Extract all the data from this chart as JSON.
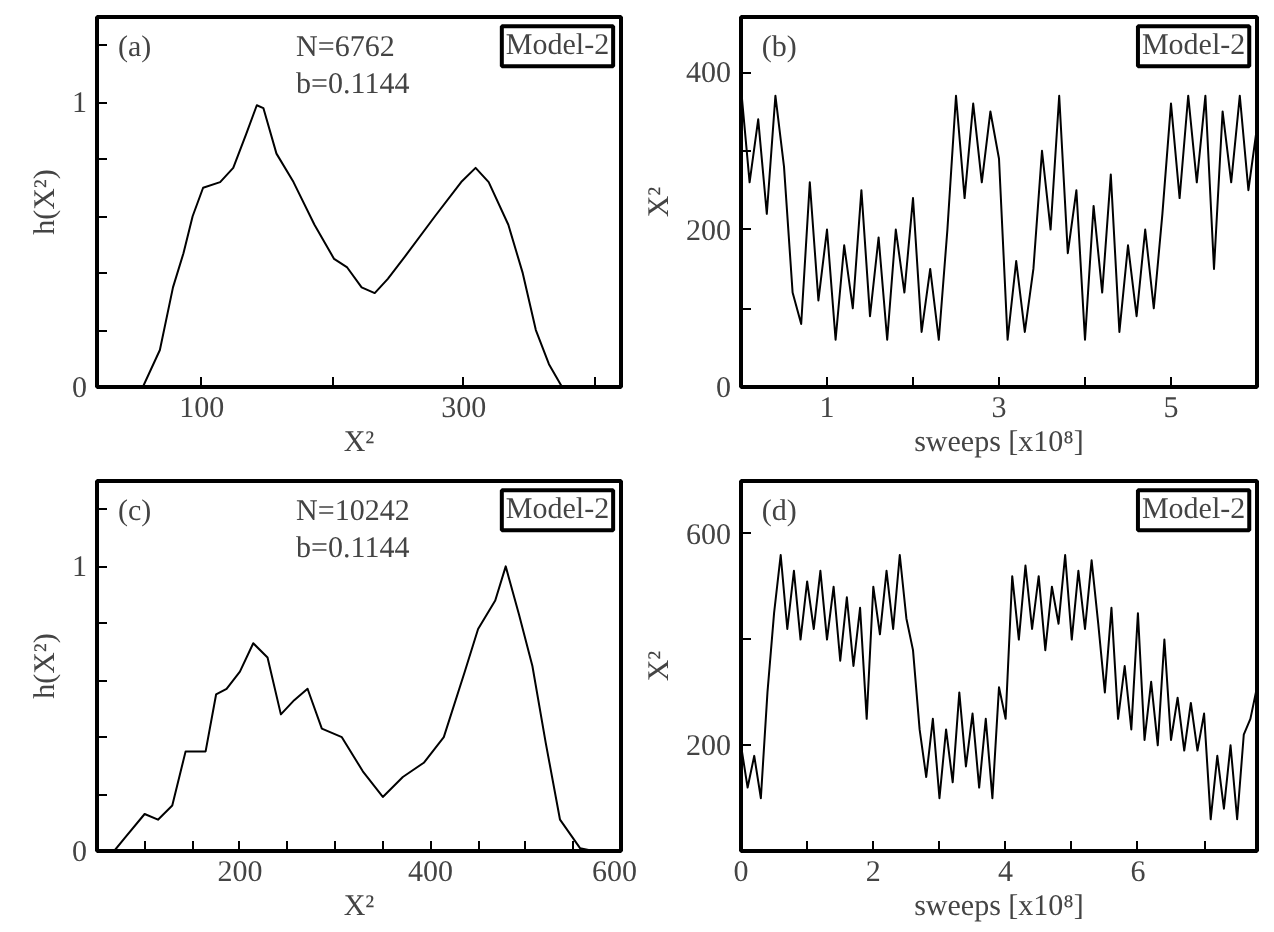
{
  "chart_data": [
    {
      "type": "line",
      "xlabel": "X²",
      "ylabel": "h(X²)",
      "annotations": [
        "(a)",
        "N=6762",
        "b=0.1144",
        "Model-2"
      ],
      "xlim": [
        20,
        420
      ],
      "ylim": [
        0,
        1.3
      ],
      "xticks": [
        100,
        {
          "value": 200,
          "label": null
        },
        300,
        {
          "value": 400,
          "label": null
        }
      ],
      "yticks": [
        0,
        {
          "value": 0.2,
          "label": null
        },
        {
          "value": 0.4,
          "label": null
        },
        {
          "value": 0.6,
          "label": null
        },
        {
          "value": 0.8,
          "label": null
        },
        1,
        {
          "value": 1.2,
          "label": null
        }
      ],
      "grid": false,
      "series": [
        {
          "color": "#000000",
          "x": [
            55,
            68,
            78,
            86,
            93,
            101,
            114,
            124,
            134,
            142,
            147,
            157,
            170,
            186,
            201,
            211,
            222,
            232,
            242,
            257,
            278,
            298,
            309,
            319,
            334,
            345,
            355,
            365,
            375
          ],
          "values": [
            0,
            0.13,
            0.35,
            0.47,
            0.6,
            0.7,
            0.72,
            0.77,
            0.89,
            0.99,
            0.98,
            0.82,
            0.72,
            0.57,
            0.45,
            0.42,
            0.35,
            0.33,
            0.38,
            0.47,
            0.6,
            0.72,
            0.77,
            0.72,
            0.57,
            0.4,
            0.2,
            0.08,
            0
          ]
        }
      ]
    },
    {
      "type": "line",
      "xlabel": "sweeps [x10⁸]",
      "ylabel": "X²",
      "annotations": [
        "(b)",
        "Model-2"
      ],
      "xlim": [
        0,
        6
      ],
      "ylim": [
        0,
        470
      ],
      "xticks": [
        1,
        {
          "value": 2,
          "label": null
        },
        3,
        {
          "value": 4,
          "label": null
        },
        5
      ],
      "yticks": [
        0,
        {
          "value": 100,
          "label": null
        },
        200,
        {
          "value": 300,
          "label": null
        },
        400
      ],
      "grid": false,
      "series": [
        {
          "color": "#000000",
          "x": [
            0,
            0.1,
            0.2,
            0.3,
            0.4,
            0.5,
            0.6,
            0.7,
            0.8,
            0.9,
            1,
            1.1,
            1.2,
            1.3,
            1.4,
            1.5,
            1.6,
            1.7,
            1.8,
            1.9,
            2,
            2.1,
            2.2,
            2.3,
            2.4,
            2.5,
            2.6,
            2.7,
            2.8,
            2.9,
            3,
            3.1,
            3.2,
            3.3,
            3.4,
            3.5,
            3.6,
            3.7,
            3.8,
            3.9,
            4,
            4.1,
            4.2,
            4.3,
            4.4,
            4.5,
            4.6,
            4.7,
            4.8,
            4.9,
            5,
            5.1,
            5.2,
            5.3,
            5.4,
            5.5,
            5.6,
            5.7,
            5.8,
            5.9,
            6
          ],
          "values": [
            380,
            260,
            340,
            220,
            370,
            280,
            120,
            80,
            260,
            110,
            200,
            60,
            180,
            100,
            250,
            90,
            190,
            60,
            200,
            120,
            240,
            70,
            150,
            60,
            200,
            370,
            240,
            360,
            260,
            350,
            290,
            60,
            160,
            70,
            150,
            300,
            200,
            370,
            170,
            250,
            60,
            230,
            120,
            270,
            70,
            180,
            90,
            200,
            100,
            220,
            360,
            240,
            370,
            260,
            370,
            150,
            350,
            260,
            370,
            250,
            330
          ]
        }
      ]
    },
    {
      "type": "line",
      "xlabel": "X²",
      "ylabel": "h(X²)",
      "annotations": [
        "(c)",
        "N=10242",
        "b=0.1144",
        "Model-2"
      ],
      "xlim": [
        50,
        600
      ],
      "ylim": [
        0,
        1.3
      ],
      "xticks": [
        {
          "value": 100,
          "label": null
        },
        {
          "value": 150,
          "label": null
        },
        200,
        {
          "value": 250,
          "label": null
        },
        {
          "value": 300,
          "label": null
        },
        {
          "value": 350,
          "label": null
        },
        400,
        {
          "value": 450,
          "label": null
        },
        {
          "value": 500,
          "label": null
        },
        {
          "value": 550,
          "label": null
        },
        600
      ],
      "yticks": [
        0,
        {
          "value": 0.2,
          "label": null
        },
        {
          "value": 0.4,
          "label": null
        },
        {
          "value": 0.6,
          "label": null
        },
        {
          "value": 0.8,
          "label": null
        },
        1,
        {
          "value": 1.2,
          "label": null
        }
      ],
      "grid": false,
      "series": [
        {
          "color": "#000000",
          "x": [
            68,
            79,
            100,
            114,
            129,
            143,
            164,
            175,
            186,
            200,
            214,
            229,
            243,
            257,
            271,
            286,
            307,
            329,
            350,
            371,
            393,
            414,
            436,
            450,
            468,
            479,
            493,
            507,
            521,
            536,
            557,
            571
          ],
          "values": [
            0,
            0.045,
            0.13,
            0.11,
            0.16,
            0.35,
            0.35,
            0.55,
            0.57,
            0.63,
            0.73,
            0.68,
            0.48,
            0.53,
            0.57,
            0.43,
            0.4,
            0.28,
            0.19,
            0.26,
            0.31,
            0.4,
            0.63,
            0.78,
            0.88,
            1,
            0.83,
            0.65,
            0.38,
            0.11,
            0.01,
            0
          ]
        }
      ]
    },
    {
      "type": "line",
      "xlabel": "sweeps [x10⁸]",
      "ylabel": "X²",
      "annotations": [
        "(d)",
        "Model-2"
      ],
      "xlim": [
        0,
        7.8
      ],
      "ylim": [
        0,
        700
      ],
      "xticks": [
        0,
        {
          "value": 1,
          "label": null
        },
        2,
        {
          "value": 3,
          "label": null
        },
        4,
        {
          "value": 5,
          "label": null
        },
        6,
        {
          "value": 7,
          "label": null
        }
      ],
      "yticks": [
        {
          "value": 0,
          "label": null
        },
        200,
        {
          "value": 400,
          "label": null
        },
        600
      ],
      "grid": false,
      "series": [
        {
          "color": "#000000",
          "x": [
            0,
            0.1,
            0.2,
            0.3,
            0.4,
            0.5,
            0.6,
            0.7,
            0.8,
            0.9,
            1,
            1.1,
            1.2,
            1.3,
            1.4,
            1.5,
            1.6,
            1.7,
            1.8,
            1.9,
            2,
            2.1,
            2.2,
            2.3,
            2.4,
            2.5,
            2.6,
            2.7,
            2.8,
            2.9,
            3,
            3.1,
            3.2,
            3.3,
            3.4,
            3.5,
            3.6,
            3.7,
            3.8,
            3.9,
            4,
            4.1,
            4.2,
            4.3,
            4.4,
            4.5,
            4.6,
            4.7,
            4.8,
            4.9,
            5,
            5.1,
            5.2,
            5.3,
            5.4,
            5.5,
            5.6,
            5.7,
            5.8,
            5.9,
            6,
            6.1,
            6.2,
            6.3,
            6.4,
            6.5,
            6.6,
            6.7,
            6.8,
            6.9,
            7,
            7.1,
            7.2,
            7.3,
            7.4,
            7.5,
            7.6,
            7.7,
            7.8
          ],
          "values": [
            200,
            120,
            180,
            100,
            300,
            450,
            560,
            420,
            530,
            400,
            510,
            420,
            530,
            400,
            500,
            360,
            480,
            350,
            460,
            250,
            500,
            410,
            530,
            420,
            560,
            440,
            380,
            230,
            140,
            250,
            100,
            230,
            130,
            300,
            160,
            260,
            120,
            250,
            100,
            310,
            250,
            520,
            400,
            540,
            420,
            520,
            380,
            500,
            430,
            560,
            400,
            530,
            420,
            550,
            430,
            300,
            460,
            250,
            350,
            230,
            450,
            210,
            320,
            200,
            400,
            210,
            290,
            190,
            280,
            190,
            260,
            60,
            180,
            80,
            200,
            60,
            220,
            250,
            310
          ]
        }
      ]
    }
  ]
}
